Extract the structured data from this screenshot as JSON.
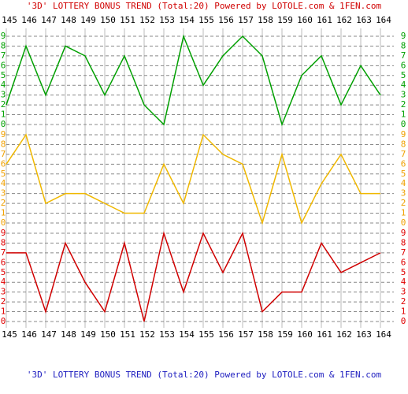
{
  "chart_data": {
    "type": "line",
    "title": "'3D' LOTTERY BONUS TREND (Total:20)  Powered by LOTOLE.com & 1FEN.com",
    "footer": "'3D' LOTTERY BONUS TREND (Total:20)  Powered by LOTOLE.com & 1FEN.com",
    "categories": [
      "145",
      "146",
      "147",
      "148",
      "149",
      "150",
      "151",
      "152",
      "153",
      "154",
      "155",
      "156",
      "157",
      "158",
      "159",
      "160",
      "161",
      "162",
      "163",
      "164"
    ],
    "ylim": [
      0,
      9
    ],
    "yticks": [
      0,
      1,
      2,
      3,
      4,
      5,
      6,
      7,
      8,
      9
    ],
    "grid": true,
    "series": [
      {
        "color": "#00a000",
        "values": [
          2,
          8,
          3,
          8,
          7,
          3,
          7,
          2,
          0,
          9,
          4,
          7,
          9,
          7,
          0,
          5,
          7,
          2,
          6,
          3
        ]
      },
      {
        "color": "#f0b800",
        "values": [
          6,
          9,
          2,
          3,
          3,
          2,
          1,
          1,
          6,
          2,
          9,
          7,
          6,
          0,
          7,
          0,
          4,
          7,
          3,
          3
        ]
      },
      {
        "color": "#d00000",
        "values": [
          7,
          7,
          1,
          8,
          4,
          1,
          8,
          0,
          9,
          3,
          9,
          5,
          9,
          1,
          3,
          3,
          8,
          5,
          6,
          7
        ]
      }
    ]
  }
}
